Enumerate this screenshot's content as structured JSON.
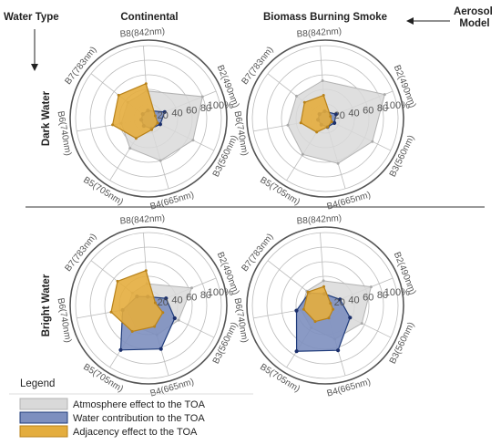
{
  "headers": {
    "water_type": "Water Type",
    "continental": "Continental",
    "smoke": "Biomass Burning Smoke",
    "aerosol_model": [
      "Aerosol",
      "Model"
    ]
  },
  "rows": {
    "dark": "Dark Water",
    "bright": "Bright Water"
  },
  "legend": {
    "title": "Legend",
    "items": [
      {
        "label": "Atmosphere effect to the TOA",
        "color": "#d9d9d9",
        "stroke": "#b3b3b3"
      },
      {
        "label": "Water contribution to the TOA",
        "color": "#7d8fbf",
        "stroke": "#1f3b7a"
      },
      {
        "label": "Adjacency effect to the TOA",
        "color": "#e4ad3e",
        "stroke": "#b8821a"
      }
    ]
  },
  "colors": {
    "atmosphere": "#d9d9d9",
    "atmosphere_stroke": "#b3b3b3",
    "water": "#7d8fbf",
    "water_stroke": "#1f3b7a",
    "water_marker": "#1b2f6b",
    "adjacency": "#e4ad3e",
    "adjacency_stroke": "#b8821a",
    "grid": "#bbbbbb",
    "frame": "#555555"
  },
  "chart_data": [
    {
      "type": "radar",
      "id": "dark-continental",
      "row": "Dark Water",
      "column": "Continental",
      "axes": [
        "B2(490nm)",
        "B3(560nm)",
        "B4(665nm)",
        "B5(705nm)",
        "B6(740nm)",
        "B7(783nm)",
        "B8(842nm)"
      ],
      "rings": [
        20,
        40,
        60,
        80,
        100
      ],
      "ring_labels": [
        "20",
        "40",
        "60",
        "80",
        "100%"
      ],
      "range": [
        0,
        100
      ],
      "series": [
        {
          "name": "Atmosphere effect to the TOA",
          "values": [
            80,
            68,
            60,
            48,
            38,
            36,
            38
          ]
        },
        {
          "name": "Water contribution to the TOA",
          "values": [
            24,
            18,
            14,
            12,
            10,
            10,
            11
          ]
        },
        {
          "name": "Adjacency effect to the TOA",
          "values": [
            10,
            14,
            16,
            32,
            50,
            52,
            48
          ]
        }
      ]
    },
    {
      "type": "radar",
      "id": "dark-smoke",
      "row": "Dark Water",
      "column": "Biomass Burning Smoke",
      "axes": [
        "B2(490nm)",
        "B3(560nm)",
        "B4(665nm)",
        "B5(705nm)",
        "B6(740nm)",
        "B7(783nm)",
        "B8(842nm)"
      ],
      "rings": [
        20,
        40,
        60,
        80,
        100
      ],
      "ring_labels": [
        "20",
        "40",
        "60",
        "80",
        "100%"
      ],
      "range": [
        0,
        100
      ],
      "series": [
        {
          "name": "Atmosphere effect to the TOA",
          "values": [
            88,
            72,
            64,
            58,
            52,
            50,
            52
          ]
        },
        {
          "name": "Water contribution to the TOA",
          "values": [
            16,
            14,
            12,
            10,
            10,
            10,
            10
          ]
        },
        {
          "name": "Adjacency effect to the TOA",
          "values": [
            8,
            10,
            12,
            22,
            34,
            36,
            32
          ]
        }
      ]
    },
    {
      "type": "radar",
      "id": "bright-continental",
      "row": "Bright Water",
      "column": "Continental",
      "axes": [
        "B2(490nm)",
        "B3(560nm)",
        "B4(665nm)",
        "B5(705nm)",
        "B6(740nm)",
        "B7(783nm)",
        "B8(842nm)"
      ],
      "rings": [
        20,
        40,
        60,
        80,
        100
      ],
      "ring_labels": [
        "20",
        "40",
        "60",
        "80",
        "100%"
      ],
      "range": [
        0,
        100
      ],
      "series": [
        {
          "name": "Atmosphere effect to the TOA",
          "values": [
            64,
            46,
            42,
            34,
            30,
            28,
            30
          ]
        },
        {
          "name": "Water contribution to the TOA",
          "values": [
            26,
            40,
            62,
            72,
            36,
            20,
            12
          ]
        },
        {
          "name": "Adjacency effect to the TOA",
          "values": [
            10,
            22,
            30,
            42,
            52,
            54,
            48
          ]
        }
      ]
    },
    {
      "type": "radar",
      "id": "bright-smoke",
      "row": "Bright Water",
      "column": "Biomass Burning Smoke",
      "axes": [
        "B2(490nm)",
        "B3(560nm)",
        "B4(665nm)",
        "B5(705nm)",
        "B6(740nm)",
        "B7(783nm)",
        "B8(842nm)"
      ],
      "rings": [
        20,
        40,
        60,
        80,
        100
      ],
      "ring_labels": [
        "20",
        "40",
        "60",
        "80",
        "100%"
      ],
      "range": [
        0,
        100
      ],
      "series": [
        {
          "name": "Atmosphere effect to the TOA",
          "values": [
            68,
            56,
            48,
            36,
            34,
            32,
            34
          ]
        },
        {
          "name": "Water contribution to the TOA",
          "values": [
            22,
            38,
            64,
            74,
            40,
            28,
            16
          ]
        },
        {
          "name": "Adjacency effect to the TOA",
          "values": [
            8,
            12,
            18,
            26,
            30,
            30,
            26
          ]
        }
      ]
    }
  ]
}
